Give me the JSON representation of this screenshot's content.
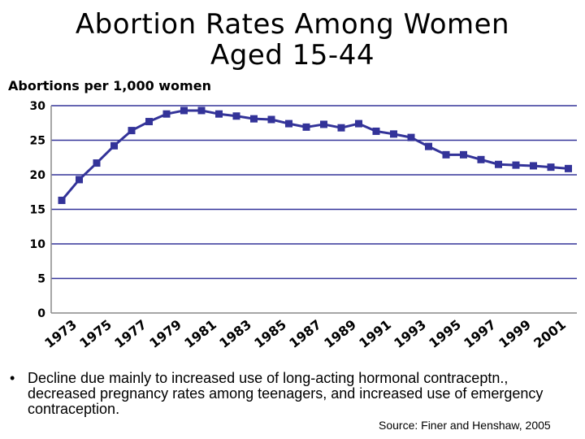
{
  "title_line1": "Abortion Rates Among Women",
  "title_line2": "Aged 15-44",
  "bullet_marker": "•",
  "bullet_text": "Decline due mainly to increased use of long-acting hormonal contraceptn., decreased pregnancy rates among teenagers, and increased use of emergency contraception.",
  "source": "Source: Finer and Henshaw, 2005",
  "chart_data": {
    "type": "line",
    "ylabel": "Abortions per 1,000 women",
    "ylim": [
      0,
      30
    ],
    "yticks": [
      0,
      5,
      10,
      15,
      20,
      25,
      30
    ],
    "x_tick_labels": [
      "1973",
      "1975",
      "1977",
      "1979",
      "1981",
      "1983",
      "1985",
      "1987",
      "1989",
      "1991",
      "1993",
      "1995",
      "1997",
      "1999",
      "2001"
    ],
    "x": [
      1973,
      1974,
      1975,
      1976,
      1977,
      1978,
      1979,
      1980,
      1981,
      1982,
      1983,
      1984,
      1985,
      1986,
      1987,
      1988,
      1989,
      1990,
      1991,
      1992,
      1993,
      1994,
      1995,
      1996,
      1997,
      1998,
      1999,
      2000,
      2001,
      2002
    ],
    "series": [
      {
        "values": [
          16.3,
          19.3,
          21.7,
          24.2,
          26.4,
          27.7,
          28.8,
          29.3,
          29.3,
          28.8,
          28.5,
          28.1,
          28.0,
          27.4,
          26.9,
          27.3,
          26.8,
          27.4,
          26.3,
          25.9,
          25.4,
          24.1,
          22.9,
          22.9,
          22.2,
          21.5,
          21.4,
          21.3,
          21.1,
          20.9
        ],
        "color": "#333399"
      }
    ],
    "grid": "horizontal",
    "axis_color": "#333399"
  }
}
